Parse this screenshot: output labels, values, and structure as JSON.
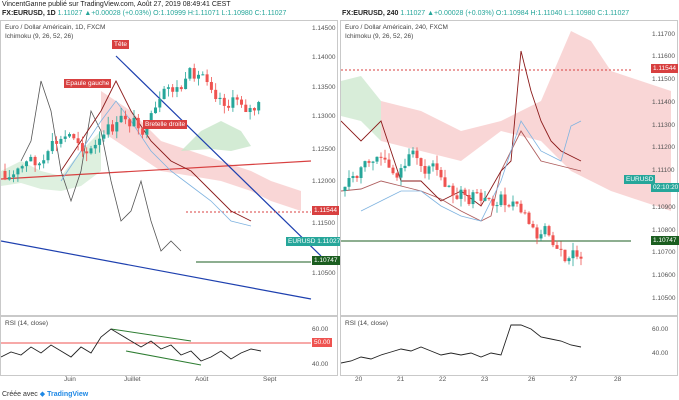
{
  "header": {
    "published": "VincentGanne publié sur TradingView.com, Août 27, 2019 08:49:41 CEST"
  },
  "left": {
    "symbol": "FX:EURUSD, 1D",
    "ohlc": "1.11027 ▲+0.00028 (+0.03%) O:1.10999 H:1.11071 L:1.10980 C:1.11027",
    "title": "Euro / Dollar Américain, 1D, FXCM",
    "indicator": "Ichimoku (9, 26, 52, 26)",
    "yticks": [
      "1.14500",
      "1.14000",
      "1.13500",
      "1.13000",
      "1.12500",
      "1.12000",
      "1.11500",
      "1.11000",
      "1.10500"
    ],
    "price_tags": {
      "upper": "1.11544",
      "current": "EURUSD  1.11027",
      "lower": "1.10747"
    },
    "annotations": {
      "head": "Tête",
      "left_shoulder": "Epaule gauche",
      "right_shoulder": "Bretelle droite"
    },
    "rsi_label": "RSI (14, close)",
    "rsi_ticks": [
      "60.00",
      "50.00",
      "40.00"
    ],
    "rsi_tag": "50.00",
    "xticks": [
      "Juin",
      "Juillet",
      "Août",
      "Sept"
    ]
  },
  "right": {
    "symbol": "FX:EURUSD, 240",
    "ohlc": "1.11027 ▲+0.00028 (+0.03%) O:1.10984 H:1.11040 L:1.10980 C:1.11027",
    "title": "Euro / Dollar Américain, 240, FXCM",
    "indicator": "Ichimoku (9, 26, 52, 26)",
    "yticks": [
      "1.11700",
      "1.11600",
      "1.11500",
      "1.11400",
      "1.11300",
      "1.11200",
      "1.11100",
      "1.11000",
      "1.10900",
      "1.10800",
      "1.10700",
      "1.10600",
      "1.10500"
    ],
    "price_tags": {
      "upper": "1.11544",
      "current": "EURUSD",
      "time": "02:10:20",
      "lower": "1.10747"
    },
    "rsi_label": "RSI (14, close)",
    "rsi_ticks": [
      "60.00",
      "40.00"
    ],
    "xticks": [
      "20",
      "21",
      "22",
      "23",
      "26",
      "27",
      "28"
    ]
  },
  "footer": {
    "prefix": "Créée avec",
    "brand": "TradingView"
  },
  "colors": {
    "up": "#26a69a",
    "down": "#ef5350",
    "cloud_red": "#f7c5c5",
    "cloud_green": "#c8e6c9",
    "trend_blue": "#1e40af"
  }
}
